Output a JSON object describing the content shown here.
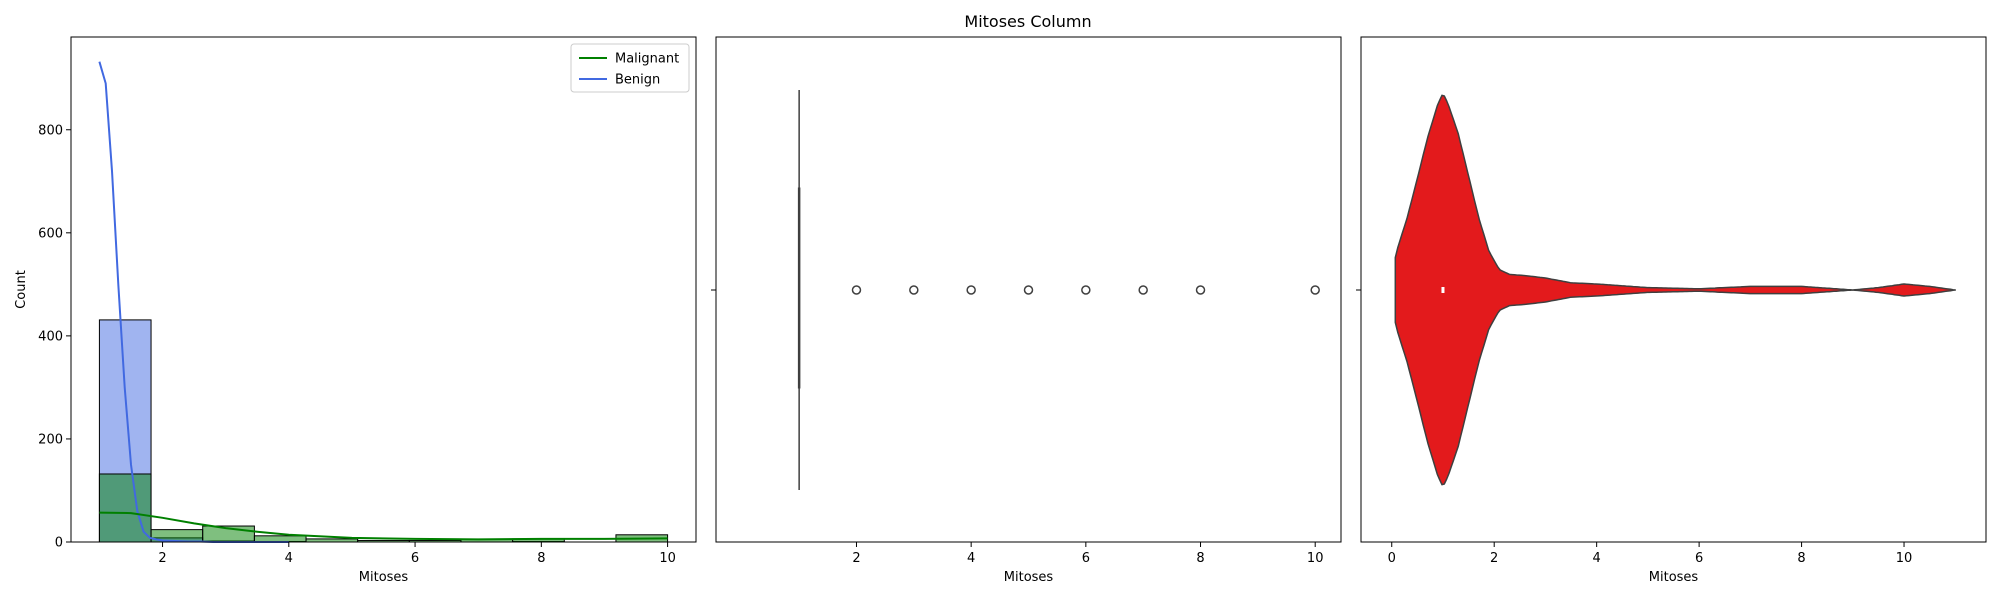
{
  "figure": {
    "title": "Mitoses Column"
  },
  "chart_data": [
    {
      "type": "histogram",
      "xlabel": "Mitoses",
      "ylabel": "Count",
      "xlim": [
        0.55,
        10.45
      ],
      "ylim": [
        0,
        980
      ],
      "xticks": [
        2,
        4,
        6,
        8,
        10
      ],
      "yticks": [
        0,
        200,
        400,
        600,
        800
      ],
      "legend_position": "top-right",
      "bin_edges": [
        1.0,
        1.818,
        2.636,
        3.455,
        4.273,
        5.091,
        5.909,
        6.727,
        7.545,
        8.364,
        9.182,
        10.0
      ],
      "series": [
        {
          "name": "Benign",
          "color": "#4169e1",
          "counts": [
            431,
            8,
            2,
            1,
            0,
            0,
            0,
            0,
            1,
            0,
            0
          ],
          "kde_x": [
            1.0,
            1.1,
            1.2,
            1.3,
            1.4,
            1.5,
            1.6,
            1.7,
            1.8,
            1.9,
            2.0,
            2.2,
            2.4,
            2.6,
            2.8,
            3.0,
            3.5,
            4.0
          ],
          "kde_y": [
            932,
            890,
            720,
            500,
            300,
            150,
            60,
            20,
            8,
            5,
            3,
            2,
            1,
            1,
            0,
            0,
            0,
            0
          ]
        },
        {
          "name": "Malignant",
          "color": "#008000",
          "counts": [
            132,
            24,
            31,
            12,
            6,
            3,
            3,
            5,
            6,
            0,
            14
          ],
          "kde_x": [
            1.0,
            1.5,
            2.0,
            2.5,
            3.0,
            3.5,
            4.0,
            5.0,
            6.0,
            7.0,
            8.0,
            9.0,
            10.0
          ],
          "kde_y": [
            57,
            56,
            47,
            36,
            27,
            20,
            14,
            8,
            6,
            5,
            6,
            6,
            7
          ]
        }
      ]
    },
    {
      "type": "box",
      "xlabel": "Mitoses",
      "xlim": [
        -0.45,
        10.45
      ],
      "xticks": [
        2,
        4,
        6,
        8,
        10
      ],
      "median": 1,
      "q1": 1,
      "q3": 1,
      "whisker_low": 1,
      "whisker_high": 1,
      "outliers": [
        2,
        3,
        4,
        5,
        6,
        7,
        8,
        10
      ]
    },
    {
      "type": "violin",
      "xlabel": "Mitoses",
      "xlim": [
        -0.6,
        11.6
      ],
      "xticks": [
        0,
        2,
        4,
        6,
        8,
        10
      ],
      "color": "#e31a1c",
      "median": 1,
      "profile_x": [
        0.07,
        0.1,
        0.3,
        0.5,
        0.7,
        0.9,
        1.0,
        1.1,
        1.3,
        1.5,
        1.7,
        1.9,
        2.1,
        2.3,
        2.6,
        3.0,
        3.5,
        4.0,
        5.0,
        6.0,
        7.0,
        8.0,
        9.0,
        9.5,
        10.0,
        10.5,
        11.0
      ],
      "profile_w": [
        0.27,
        0.33,
        0.6,
        0.93,
        1.27,
        1.55,
        1.64,
        1.55,
        1.3,
        0.95,
        0.6,
        0.32,
        0.17,
        0.13,
        0.12,
        0.1,
        0.06,
        0.05,
        0.02,
        0.01,
        0.03,
        0.03,
        0.0,
        0.02,
        0.05,
        0.03,
        0.0
      ]
    }
  ]
}
